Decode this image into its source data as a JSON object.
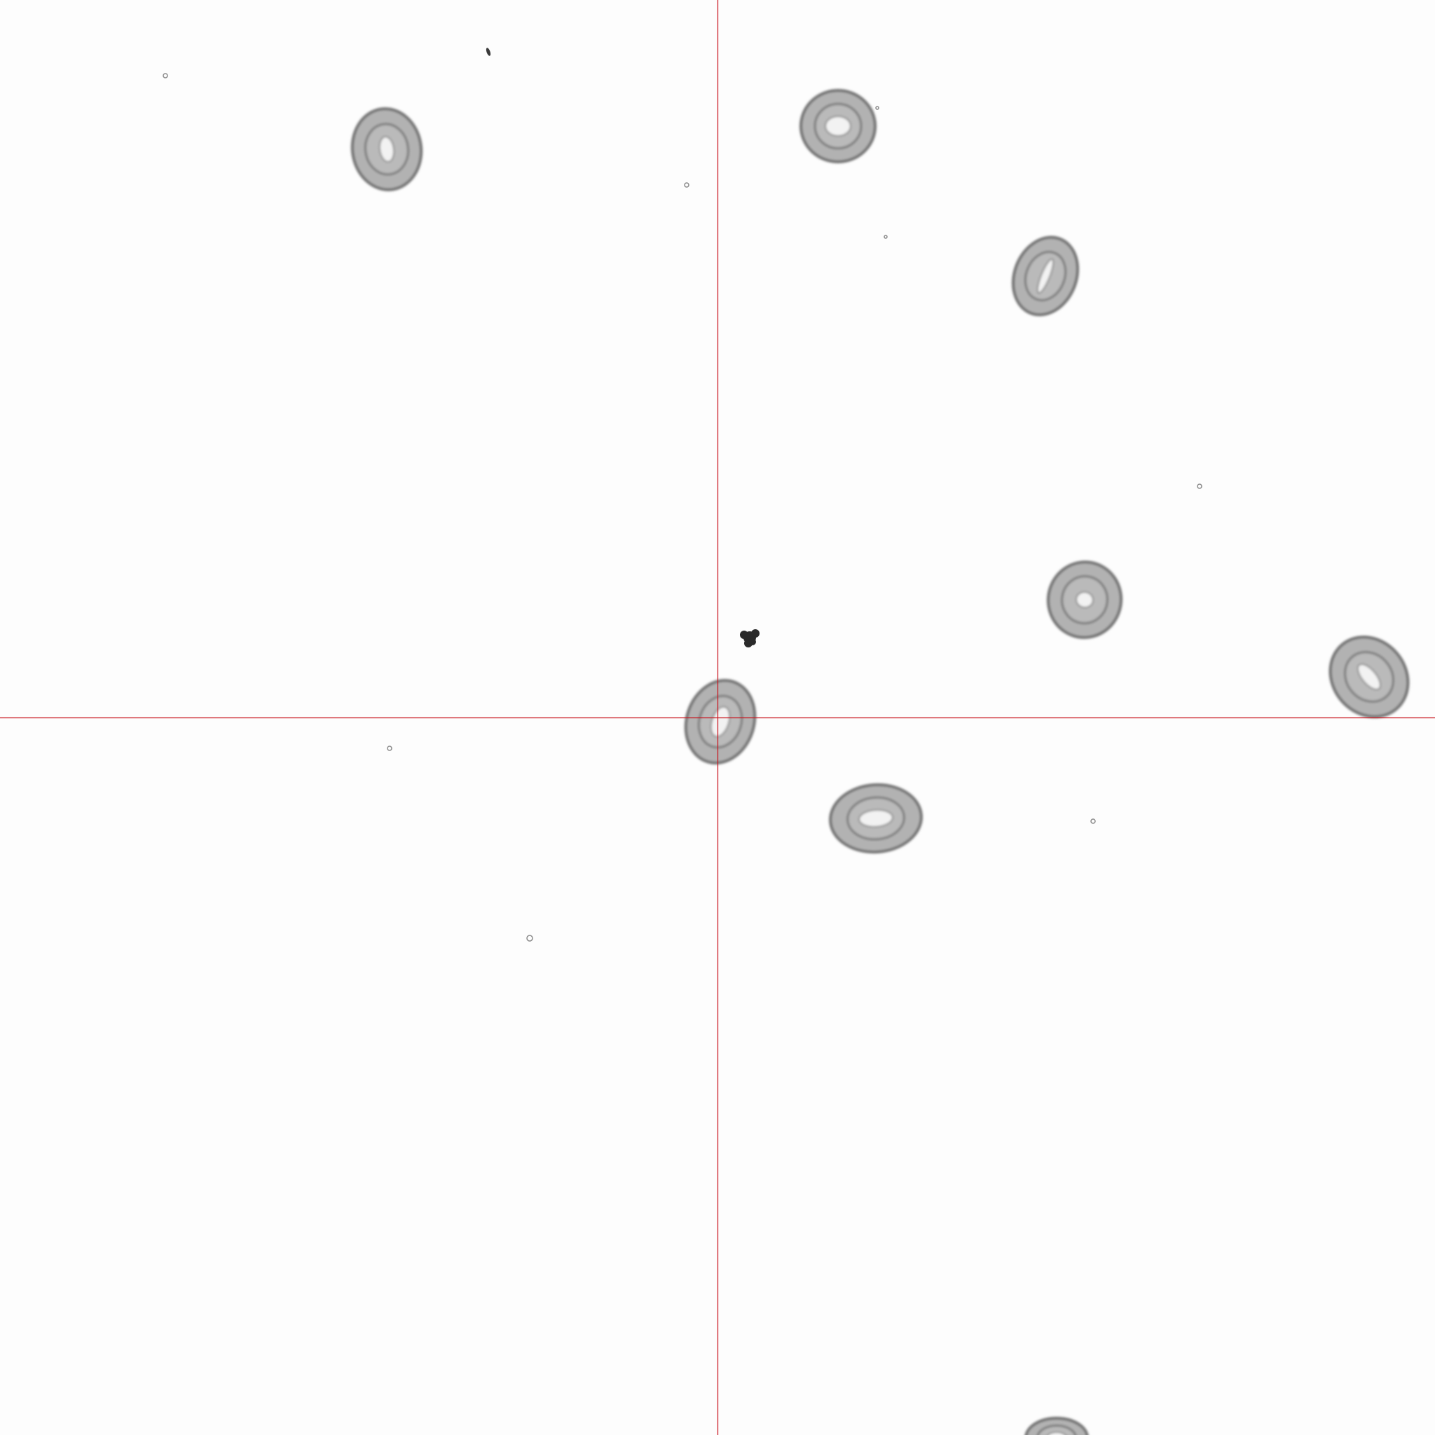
{
  "image": {
    "background_color": "#fdfdfd",
    "crosshair_color": "#c8101a",
    "cell_fill": "#9a9a9a",
    "cell_stroke": "#6f6f6f",
    "cell_center_fill": "#f2f2f2",
    "debris_color": "#2a2a2a",
    "speck_color": "#8a8a8a"
  }
}
